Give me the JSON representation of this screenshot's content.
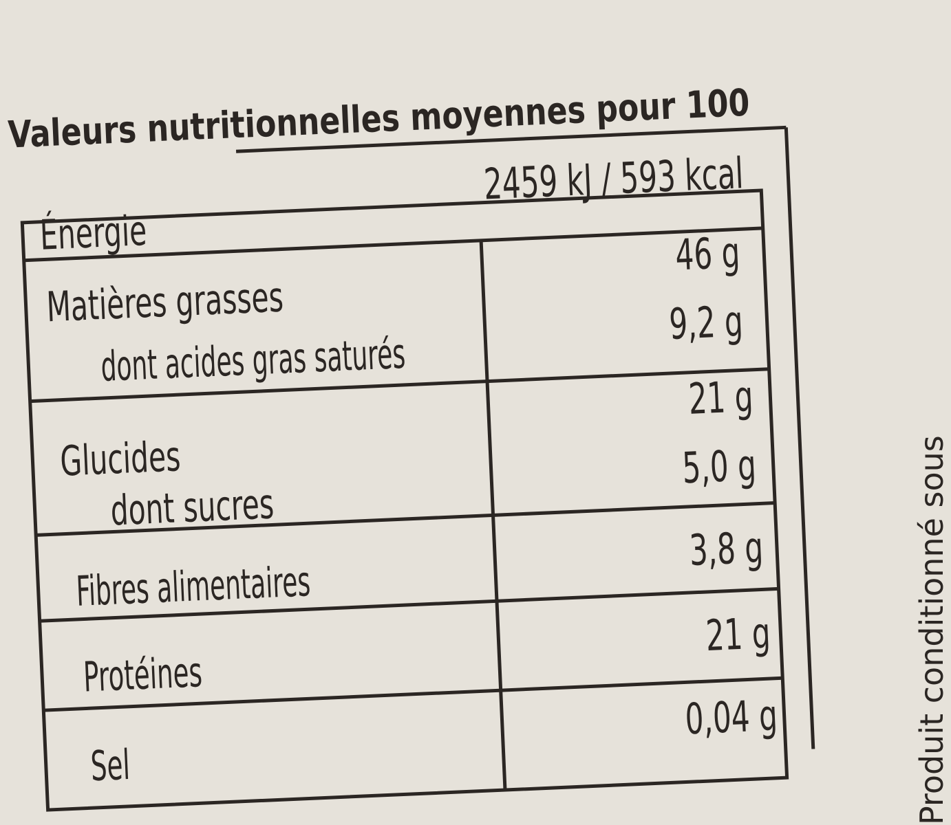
{
  "title": "Valeurs nutritionnelles moyennes pour 100",
  "side_text": "Produit conditionné sous",
  "table": {
    "rows": [
      {
        "label": "Énergie",
        "value": "2459 kJ / 593 kcal"
      },
      {
        "label": "Matières grasses",
        "value": "46 g"
      },
      {
        "label": "dont acides gras saturés",
        "value": "9,2 g"
      },
      {
        "label": "Glucides",
        "value": "21 g"
      },
      {
        "label": "dont sucres",
        "value": "5,0 g"
      },
      {
        "label": "Fibres alimentaires",
        "value": "3,8 g"
      },
      {
        "label": "Protéines",
        "value": "21 g"
      },
      {
        "label": "Sel",
        "value": "0,04 g"
      }
    ]
  }
}
